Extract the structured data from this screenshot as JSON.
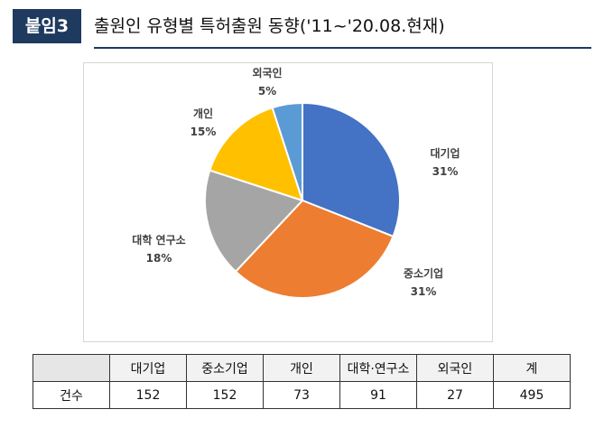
{
  "header": {
    "badge": "붙임3",
    "title": "출원인 유형별 특허출원 동향('11~'20.08.현재)"
  },
  "chart_data": {
    "type": "pie",
    "title": "",
    "slices": [
      {
        "label": "대기업",
        "percent": "31%",
        "value": 31,
        "color": "#4472C4"
      },
      {
        "label": "중소기업",
        "percent": "31%",
        "value": 31,
        "color": "#ED7D31"
      },
      {
        "label": "대학 연구소",
        "percent": "18%",
        "value": 18,
        "color": "#A5A5A5"
      },
      {
        "label": "개인",
        "percent": "15%",
        "value": 15,
        "color": "#FFC000"
      },
      {
        "label": "외국인",
        "percent": "5%",
        "value": 5,
        "color": "#5B9BD5"
      }
    ]
  },
  "table": {
    "corner": "",
    "columns": [
      "대기업",
      "중소기업",
      "개인",
      "대학·연구소",
      "외국인",
      "계"
    ],
    "row_label": "건수",
    "values": [
      "152",
      "152",
      "73",
      "91",
      "27",
      "495"
    ]
  }
}
